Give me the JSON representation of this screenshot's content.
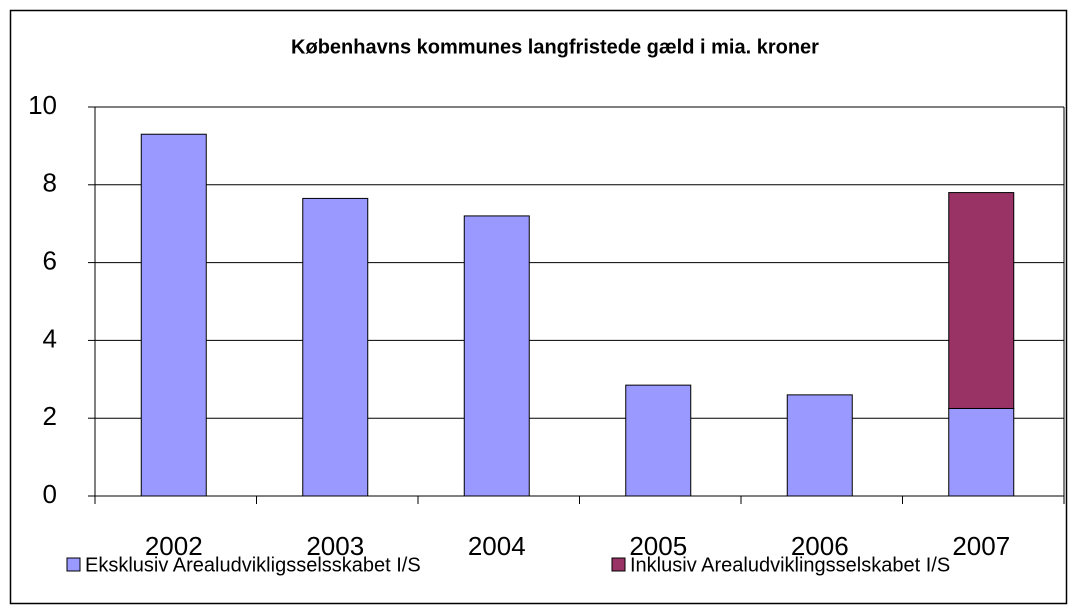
{
  "chart_data": {
    "type": "stacked_bar",
    "title": "Københavns kommunes langfristede gæld i mia. kroner",
    "categories": [
      "2002",
      "2003",
      "2004",
      "2005",
      "2006",
      "2007"
    ],
    "series": [
      {
        "name": "Eksklusiv Arealudvikligsselsskabet I/S",
        "color": "#9999ff",
        "values": [
          9.3,
          7.65,
          7.2,
          2.85,
          2.6,
          2.25
        ]
      },
      {
        "name": "Inklusiv Arealudviklingsselskabet I/S",
        "color": "#993366",
        "values": [
          null,
          null,
          null,
          null,
          null,
          5.55
        ]
      }
    ],
    "ylim": [
      0,
      10
    ],
    "yticks": [
      0,
      2,
      4,
      6,
      8,
      10
    ],
    "grid": true,
    "legend": "bottom"
  }
}
